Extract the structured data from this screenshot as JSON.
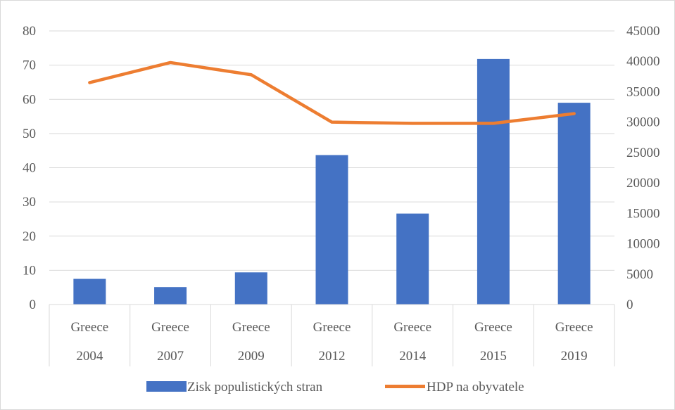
{
  "chart_data": {
    "type": "bar",
    "combo": "bar + line (secondary axis)",
    "categories": [
      {
        "group": "Greece",
        "year": "2004"
      },
      {
        "group": "Greece",
        "year": "2007"
      },
      {
        "group": "Greece",
        "year": "2009"
      },
      {
        "group": "Greece",
        "year": "2012"
      },
      {
        "group": "Greece",
        "year": "2014"
      },
      {
        "group": "Greece",
        "year": "2015"
      },
      {
        "group": "Greece",
        "year": "2019"
      }
    ],
    "series": [
      {
        "name": "Zisk populistických stran",
        "type": "bar",
        "axis": "left",
        "color": "#4472C4",
        "values": [
          7.5,
          5.1,
          9.4,
          43.7,
          26.6,
          71.8,
          59.0
        ]
      },
      {
        "name": "HDP na obyvatele",
        "type": "line",
        "axis": "right",
        "color": "#ED7D31",
        "values": [
          36500,
          39800,
          37800,
          30000,
          29800,
          29800,
          31400
        ]
      }
    ],
    "y_left": {
      "min": 0,
      "max": 80,
      "step": 10,
      "ticks": [
        "0",
        "10",
        "20",
        "30",
        "40",
        "50",
        "60",
        "70",
        "80"
      ]
    },
    "y_right": {
      "min": 0,
      "max": 45000,
      "step": 5000,
      "ticks": [
        "0",
        "5000",
        "10000",
        "15000",
        "20000",
        "25000",
        "30000",
        "35000",
        "40000",
        "45000"
      ]
    },
    "grid": true,
    "legend": "bottom",
    "title": "",
    "xlabel": "",
    "ylabel": ""
  }
}
